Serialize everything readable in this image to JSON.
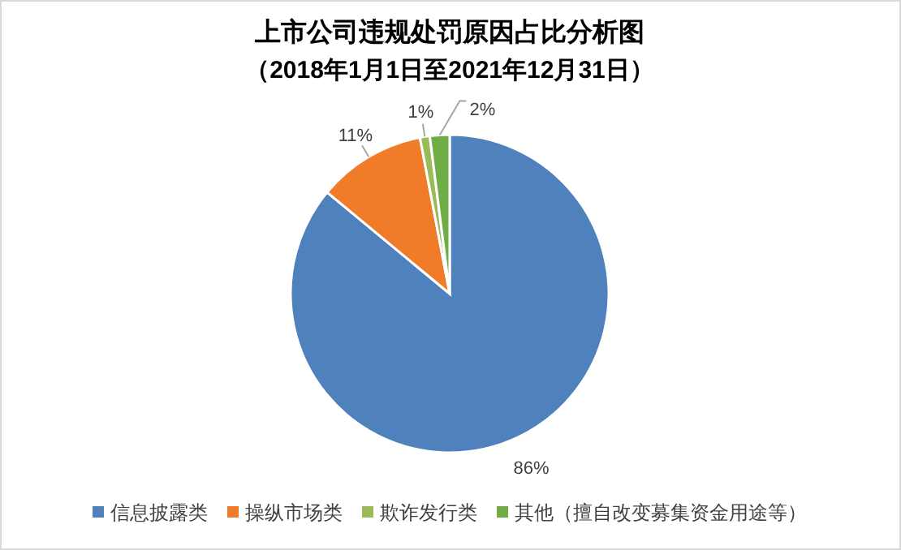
{
  "chart_data": {
    "type": "pie",
    "title": "上市公司违规处罚原因占比分析图",
    "subtitle": "（2018年1月1日至2021年12月31日）",
    "categories": [
      "信息披露类",
      "操纵市场类",
      "欺诈发行类",
      "其他（擅自改变募集资金用途等）"
    ],
    "values": [
      86,
      11,
      1,
      2
    ],
    "colors": [
      "#4f81bd",
      "#f07c2a",
      "#9bbb59",
      "#70ad47"
    ],
    "value_labels": [
      "86%",
      "11%",
      "1%",
      "2%"
    ],
    "legend": "bottom"
  }
}
